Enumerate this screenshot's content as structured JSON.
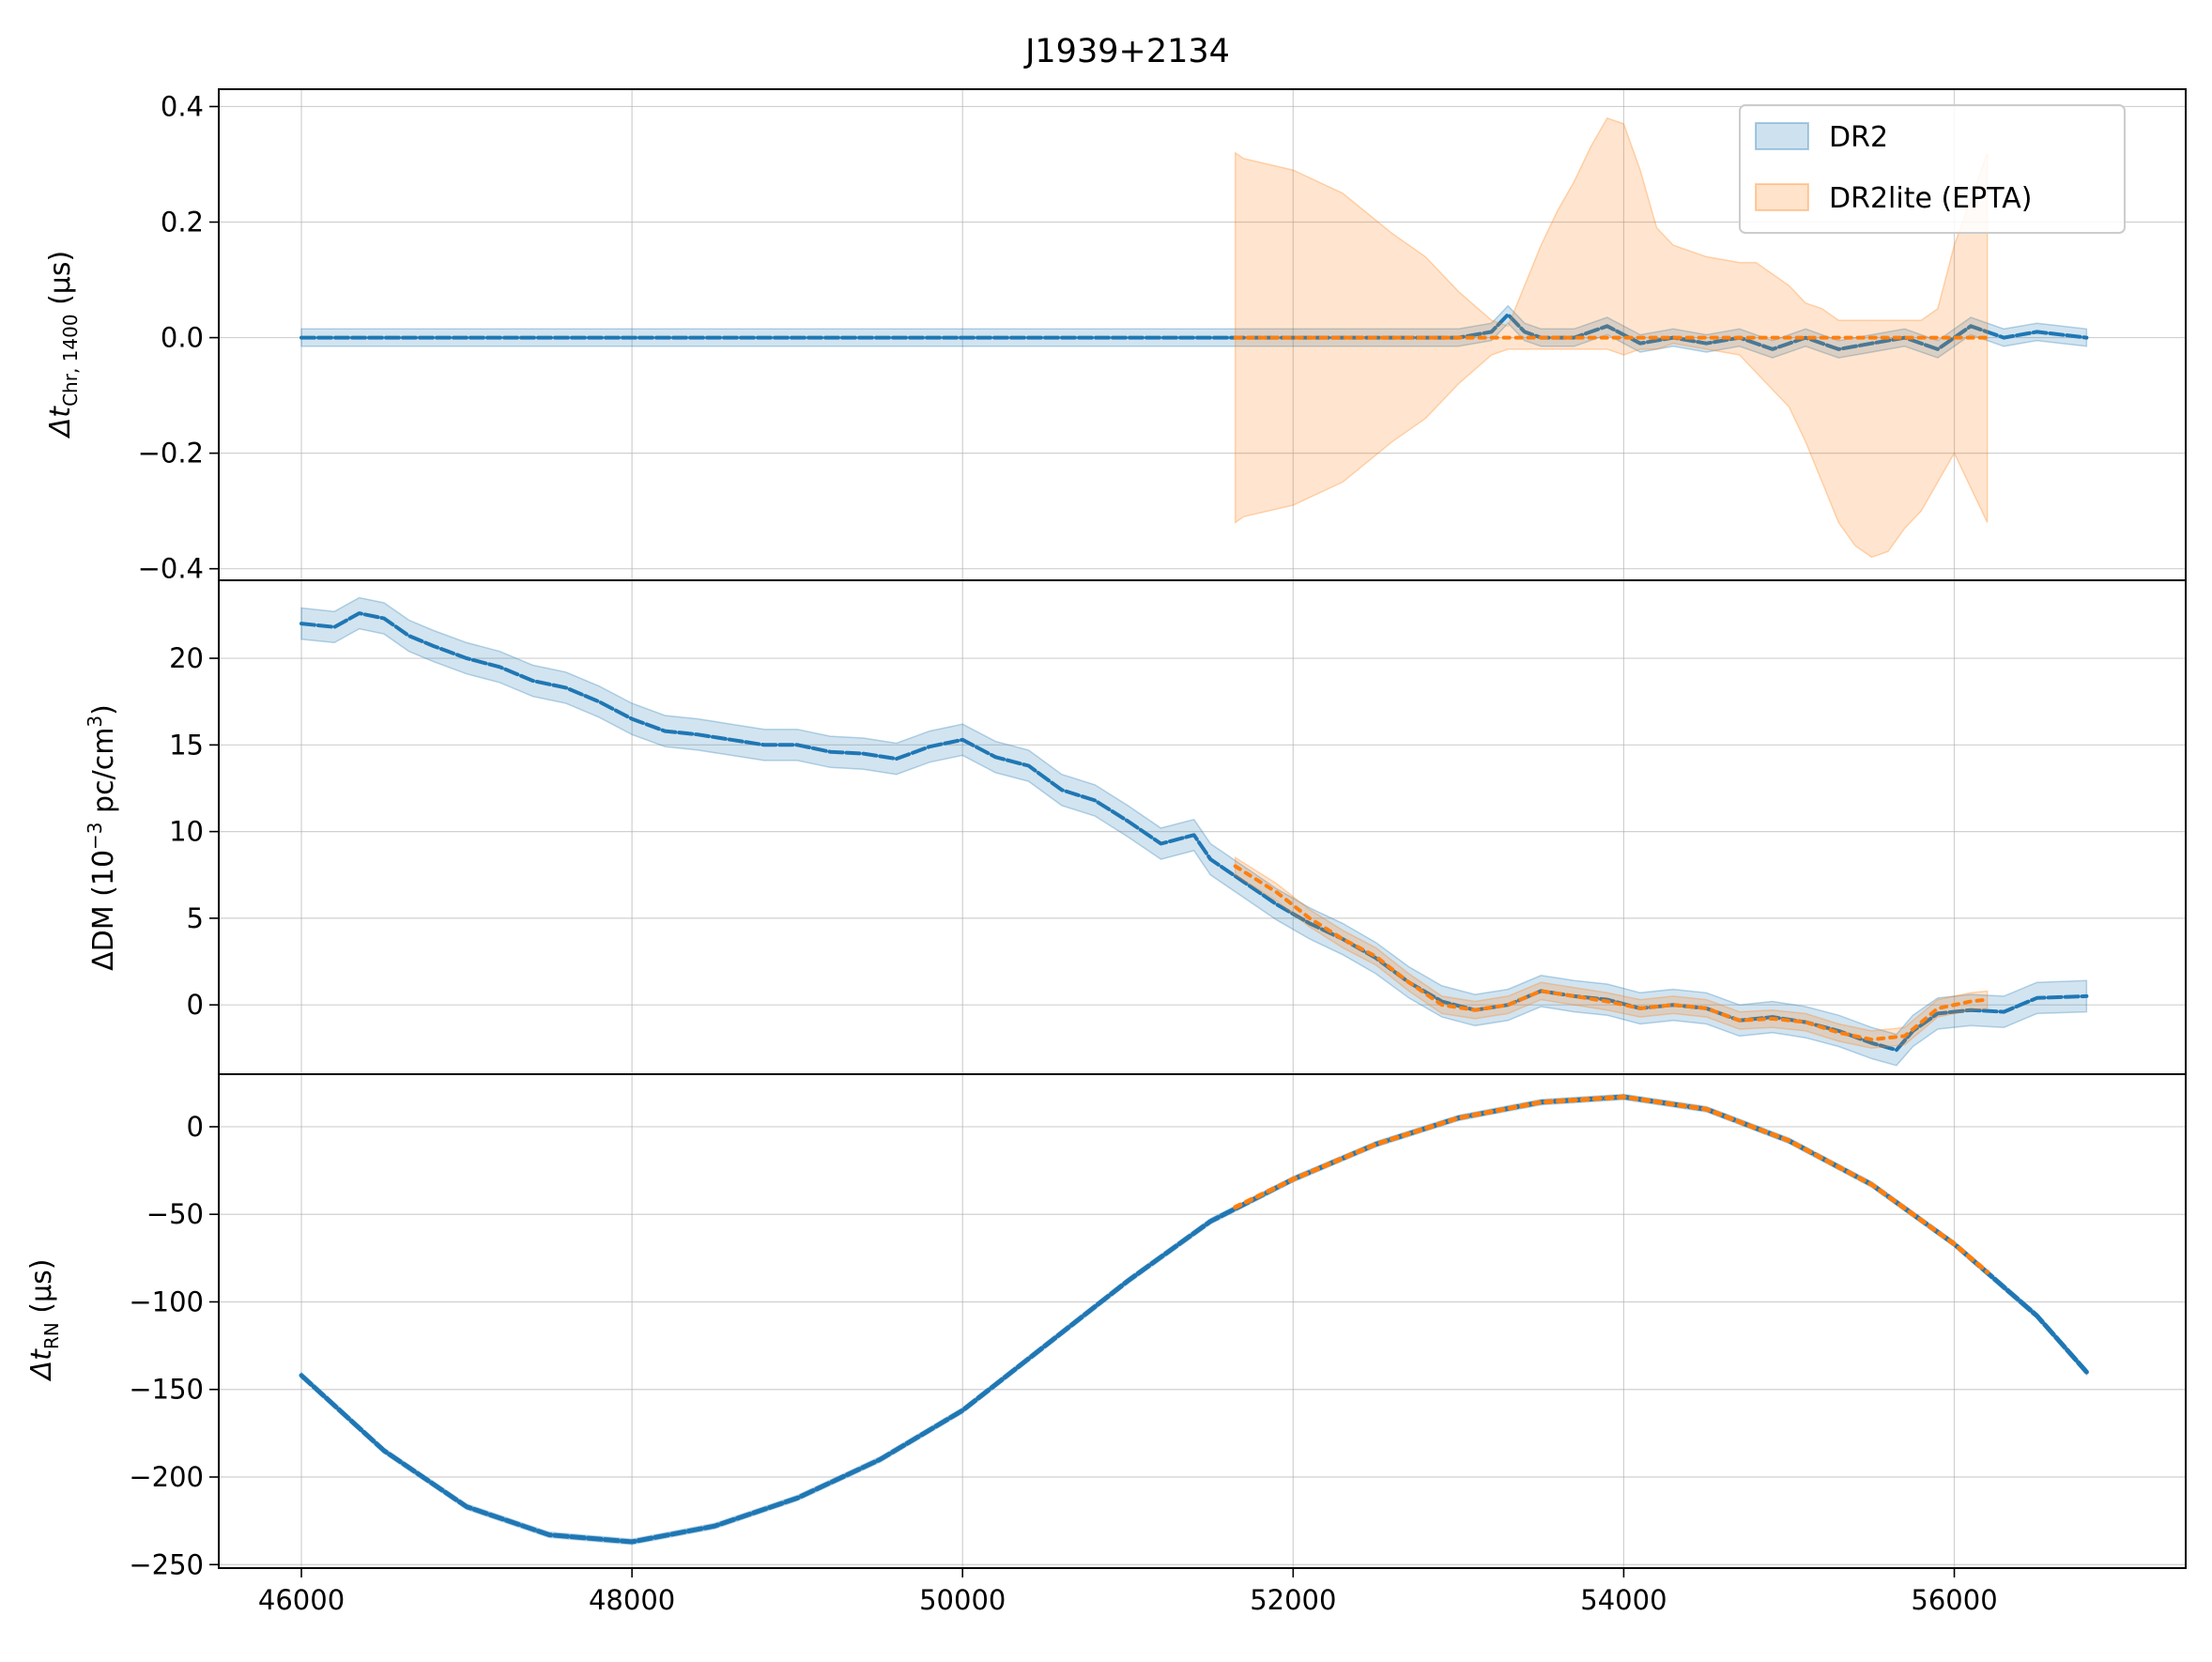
{
  "chart_data": {
    "title": "J1939+2134",
    "type": "line",
    "x_axis": {
      "xlim": [
        45500,
        57400
      ],
      "ticks": [
        46000,
        48000,
        50000,
        52000,
        54000,
        56000
      ],
      "tick_labels": [
        "46000",
        "48000",
        "50000",
        "52000",
        "54000",
        "56000"
      ],
      "grid": true
    },
    "legend": {
      "placement": "top-right",
      "entries": [
        {
          "label": "DR2",
          "color": "#1f77b4"
        },
        {
          "label": "DR2lite (EPTA)",
          "color": "#ff7f0e"
        }
      ]
    },
    "panels": [
      {
        "id": "chromatic",
        "ylabel_main": "Δt",
        "ylabel_sub": "Chr, 1400",
        "ylabel_unit": " (μs)",
        "ylim": [
          -0.42,
          0.43
        ],
        "ticks": [
          -0.4,
          -0.2,
          0.0,
          0.2,
          0.4
        ],
        "tick_labels": [
          "−0.4",
          "−0.2",
          "0.0",
          "0.2",
          "0.4"
        ],
        "series": [
          {
            "name": "DR2",
            "color": "#1f77b4",
            "band_halfwidth": 0.015,
            "x": [
              46000,
              46500,
              47000,
              47500,
              48000,
              48500,
              49000,
              49500,
              50000,
              50500,
              51000,
              51500,
              52000,
              52500,
              53000,
              53200,
              53300,
              53400,
              53500,
              53700,
              53900,
              54100,
              54300,
              54500,
              54700,
              54900,
              55100,
              55300,
              55500,
              55700,
              55900,
              56100,
              56300,
              56500,
              56800
            ],
            "y": [
              0.0,
              0.0,
              0.0,
              0.0,
              0.0,
              0.0,
              0.0,
              0.0,
              0.0,
              0.0,
              0.0,
              0.0,
              0.0,
              0.0,
              0.0,
              0.01,
              0.04,
              0.01,
              0.0,
              0.0,
              0.02,
              -0.01,
              0.0,
              -0.01,
              0.0,
              -0.02,
              0.0,
              -0.02,
              -0.01,
              0.0,
              -0.02,
              0.02,
              0.0,
              0.01,
              0.0
            ]
          },
          {
            "name": "DR2lite (EPTA)",
            "color": "#ff7f0e",
            "x": [
              51650,
              52000,
              52500,
              53000,
              53500,
              54000,
              54500,
              55000,
              55500,
              56000,
              56200
            ],
            "y": [
              0.0,
              0.0,
              0.0,
              0.0,
              0.0,
              0.0,
              0.0,
              0.0,
              0.0,
              0.0,
              0.0
            ],
            "band_x": [
              51650,
              51700,
              52000,
              52300,
              52600,
              52800,
              53000,
              53200,
              53300,
              53400,
              53500,
              53600,
              53700,
              53800,
              53900,
              54000,
              54100,
              54200,
              54300,
              54500,
              54700,
              54800,
              54900,
              55000,
              55100,
              55200,
              55300,
              55400,
              55500,
              55600,
              55700,
              55800,
              55900,
              56000,
              56200
            ],
            "band_upper": [
              0.32,
              0.31,
              0.29,
              0.25,
              0.18,
              0.14,
              0.08,
              0.03,
              0.02,
              0.09,
              0.16,
              0.22,
              0.27,
              0.33,
              0.38,
              0.37,
              0.29,
              0.19,
              0.16,
              0.14,
              0.13,
              0.13,
              0.11,
              0.09,
              0.06,
              0.05,
              0.03,
              0.03,
              0.03,
              0.03,
              0.03,
              0.03,
              0.05,
              0.16,
              0.32
            ],
            "band_lower": [
              -0.32,
              -0.31,
              -0.29,
              -0.25,
              -0.18,
              -0.14,
              -0.08,
              -0.03,
              -0.02,
              -0.02,
              -0.02,
              -0.02,
              -0.02,
              -0.02,
              -0.02,
              -0.03,
              -0.02,
              -0.02,
              -0.01,
              -0.02,
              -0.03,
              -0.06,
              -0.09,
              -0.12,
              -0.18,
              -0.25,
              -0.32,
              -0.36,
              -0.38,
              -0.37,
              -0.33,
              -0.3,
              -0.25,
              -0.2,
              -0.32
            ]
          }
        ]
      },
      {
        "id": "dm",
        "ylabel_main": "ΔDM (10",
        "ylabel_sup": "−3",
        "ylabel_mid": " pc/cm",
        "ylabel_sup2": "3",
        "ylabel_end": ")",
        "ylim": [
          -4,
          24.5
        ],
        "ticks": [
          0,
          5,
          10,
          15,
          20
        ],
        "tick_labels": [
          "0",
          "5",
          "10",
          "15",
          "20"
        ],
        "series": [
          {
            "name": "DR2",
            "color": "#1f77b4",
            "band_halfwidth": 0.9,
            "x": [
              46000,
              46200,
              46350,
              46500,
              46650,
              46800,
              47000,
              47200,
              47400,
              47600,
              47800,
              48000,
              48200,
              48400,
              48600,
              48800,
              49000,
              49200,
              49400,
              49600,
              49800,
              50000,
              50200,
              50400,
              50600,
              50800,
              51000,
              51200,
              51400,
              51500,
              51700,
              51900,
              52100,
              52300,
              52500,
              52700,
              52900,
              53100,
              53300,
              53500,
              53700,
              53900,
              54100,
              54300,
              54500,
              54700,
              54900,
              55100,
              55300,
              55500,
              55650,
              55750,
              55900,
              56100,
              56300,
              56500,
              56800
            ],
            "y": [
              22.0,
              21.8,
              22.6,
              22.3,
              21.3,
              20.7,
              20.0,
              19.5,
              18.7,
              18.3,
              17.5,
              16.5,
              15.8,
              15.6,
              15.3,
              15.0,
              15.0,
              14.6,
              14.5,
              14.2,
              14.9,
              15.3,
              14.3,
              13.8,
              12.4,
              11.8,
              10.6,
              9.3,
              9.8,
              8.4,
              7.1,
              5.8,
              4.7,
              3.8,
              2.7,
              1.3,
              0.2,
              -0.3,
              0.0,
              0.8,
              0.5,
              0.3,
              -0.2,
              0.0,
              -0.2,
              -0.9,
              -0.7,
              -1.0,
              -1.5,
              -2.2,
              -2.6,
              -1.5,
              -0.5,
              -0.3,
              -0.4,
              0.4,
              0.5
            ]
          },
          {
            "name": "DR2lite (EPTA)",
            "color": "#ff7f0e",
            "band_halfwidth": 0.5,
            "x": [
              51650,
              51900,
              52100,
              52300,
              52500,
              52700,
              52900,
              53100,
              53300,
              53500,
              53700,
              53900,
              54100,
              54300,
              54500,
              54700,
              54900,
              55100,
              55300,
              55500,
              55700,
              55900,
              56100,
              56200
            ],
            "y": [
              8.0,
              6.5,
              5.0,
              3.8,
              2.8,
              1.3,
              0.0,
              -0.3,
              0.0,
              0.8,
              0.5,
              0.2,
              -0.2,
              0.0,
              -0.2,
              -0.9,
              -0.8,
              -1.0,
              -1.6,
              -2.0,
              -1.8,
              -0.2,
              0.2,
              0.3
            ]
          }
        ]
      },
      {
        "id": "rn",
        "ylabel_main": "Δt",
        "ylabel_sub": "RN",
        "ylabel_unit": " (μs)",
        "ylim": [
          -252,
          30
        ],
        "ticks": [
          -250,
          -200,
          -150,
          -100,
          -50,
          0
        ],
        "tick_labels": [
          "−250",
          "−200",
          "−150",
          "−100",
          "−50",
          "0"
        ],
        "series": [
          {
            "name": "DR2",
            "color": "#1f77b4",
            "band_halfwidth": 1.5,
            "x": [
              46000,
              46500,
              47000,
              47500,
              48000,
              48500,
              49000,
              49500,
              50000,
              50500,
              51000,
              51500,
              52000,
              52500,
              53000,
              53500,
              54000,
              54500,
              55000,
              55500,
              56000,
              56500,
              56800
            ],
            "y": [
              -142,
              -185,
              -217,
              -233,
              -237,
              -228,
              -212,
              -190,
              -162,
              -125,
              -88,
              -54,
              -30,
              -10,
              5,
              14,
              17,
              10,
              -8,
              -33,
              -67,
              -108,
              -140
            ]
          },
          {
            "name": "DR2lite (EPTA)",
            "color": "#ff7f0e",
            "x": [
              51650,
              52000,
              52500,
              53000,
              53500,
              54000,
              54500,
              55000,
              55500,
              56000,
              56200
            ],
            "y": [
              -46,
              -30,
              -10,
              5,
              14,
              17,
              10,
              -8,
              -33,
              -67,
              -83
            ]
          }
        ]
      }
    ]
  }
}
